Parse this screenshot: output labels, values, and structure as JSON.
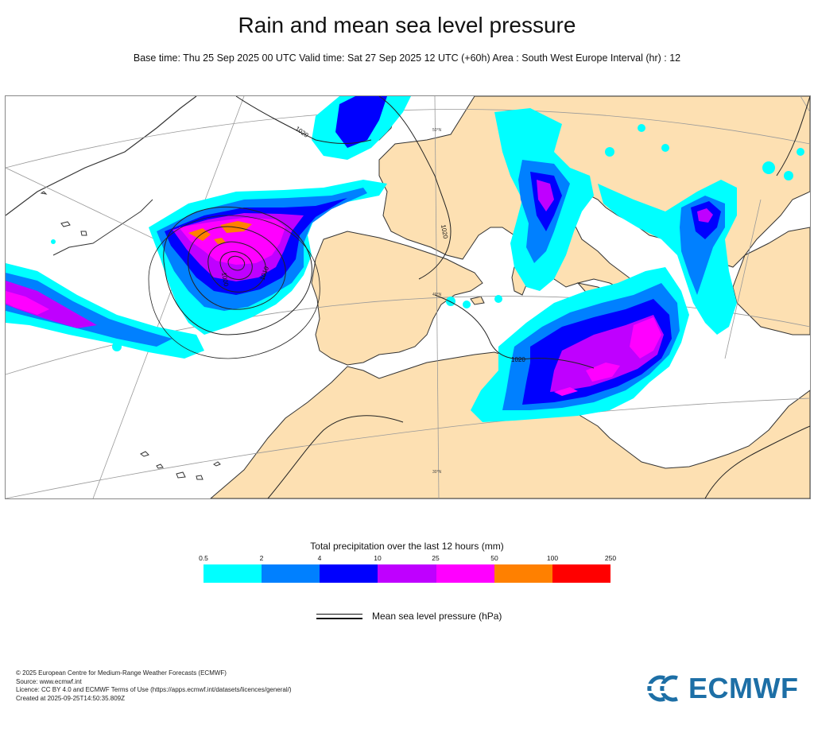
{
  "header": {
    "title": "Rain and mean sea level pressure",
    "subtitle": "Base time: Thu 25 Sep 2025 00 UTC Valid time: Sat 27 Sep 2025 12 UTC (+60h) Area : South West Europe Interval (hr) : 12"
  },
  "map": {
    "isobar_labels": [
      "1020",
      "1020",
      "1020",
      "1000",
      "1010"
    ],
    "lat_labels": [
      "50°N",
      "40°N",
      "30°N"
    ],
    "colors": {
      "land": "#fde0b2",
      "sea": "#ffffff",
      "coast": "#333333",
      "isobar": "#222222",
      "graticule": "#999999"
    }
  },
  "legend": {
    "title": "Total precipitation over the last 12 hours (mm)",
    "ticks": [
      "0.5",
      "2",
      "4",
      "10",
      "25",
      "50",
      "100",
      "250"
    ],
    "colors": [
      "#00ffff",
      "#0080ff",
      "#0000fe",
      "#bf00ff",
      "#ff00ff",
      "#ff8000",
      "#ff0000"
    ],
    "mslp_label": "Mean sea level pressure (hPa)"
  },
  "footer": {
    "line1": "© 2025 European Centre for Medium-Range Weather Forecasts (ECMWF)",
    "line2": "Source: www.ecmwf.int",
    "line3": "Licence: CC BY 4.0 and ECMWF Terms of Use (https://apps.ecmwf.int/datasets/licences/general/)",
    "line4": "Created at 2025-09-25T14:50:35.809Z"
  },
  "logo": {
    "text": "ECMWF",
    "color": "#1d6fa6"
  }
}
